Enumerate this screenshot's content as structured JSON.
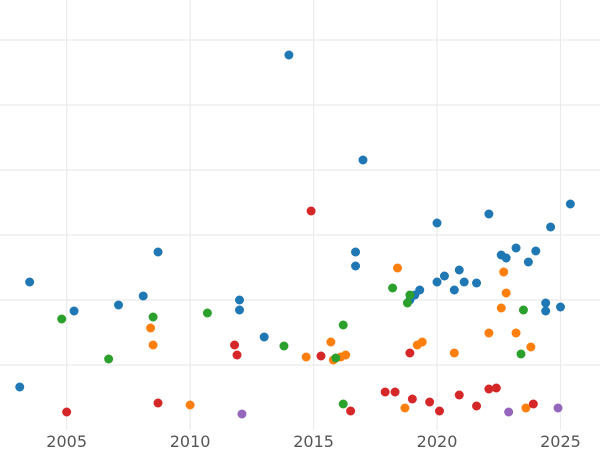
{
  "chart_data": {
    "type": "scatter",
    "title": "",
    "xlabel": "",
    "ylabel": "",
    "xlim": [
      2002.3,
      2026.6
    ],
    "ylim": [
      0,
      430
    ],
    "x_ticks": [
      2005,
      2010,
      2015,
      2020,
      2025
    ],
    "x_tick_labels": [
      "2005",
      "2010",
      "2015",
      "2020",
      "2025"
    ],
    "y_gridlines": [
      65,
      130,
      195,
      260,
      325,
      390
    ],
    "grid": true,
    "legend": "none",
    "series": [
      {
        "color": "#1f77b4",
        "points": [
          [
            2003.1,
            43
          ],
          [
            2003.5,
            148
          ],
          [
            2005.3,
            119
          ],
          [
            2007.1,
            125
          ],
          [
            2008.1,
            134
          ],
          [
            2008.7,
            178
          ],
          [
            2012.0,
            120
          ],
          [
            2012.0,
            130
          ],
          [
            2013.0,
            93
          ],
          [
            2014.0,
            375
          ],
          [
            2016.7,
            164
          ],
          [
            2016.7,
            178
          ],
          [
            2017.0,
            270
          ],
          [
            2018.9,
            130
          ],
          [
            2019.1,
            135
          ],
          [
            2019.3,
            140
          ],
          [
            2020.0,
            148
          ],
          [
            2020.0,
            207
          ],
          [
            2020.3,
            154
          ],
          [
            2020.7,
            140
          ],
          [
            2020.9,
            160
          ],
          [
            2021.1,
            148
          ],
          [
            2021.6,
            147
          ],
          [
            2022.1,
            216
          ],
          [
            2022.6,
            175
          ],
          [
            2022.8,
            172
          ],
          [
            2023.2,
            182
          ],
          [
            2023.7,
            168
          ],
          [
            2024.0,
            179
          ],
          [
            2024.4,
            119
          ],
          [
            2024.4,
            127
          ],
          [
            2024.6,
            203
          ],
          [
            2025.0,
            123
          ],
          [
            2025.4,
            226
          ]
        ]
      },
      {
        "color": "#ff7f0e",
        "points": [
          [
            2008.4,
            102
          ],
          [
            2008.5,
            85
          ],
          [
            2010.0,
            25
          ],
          [
            2014.7,
            73
          ],
          [
            2015.7,
            88
          ],
          [
            2015.8,
            70
          ],
          [
            2016.1,
            73
          ],
          [
            2016.3,
            75
          ],
          [
            2018.4,
            162
          ],
          [
            2018.7,
            22
          ],
          [
            2019.2,
            85
          ],
          [
            2019.4,
            88
          ],
          [
            2020.7,
            77
          ],
          [
            2022.1,
            97
          ],
          [
            2022.6,
            122
          ],
          [
            2022.7,
            158
          ],
          [
            2022.8,
            137
          ],
          [
            2023.2,
            97
          ],
          [
            2023.6,
            22
          ],
          [
            2023.8,
            83
          ]
        ]
      },
      {
        "color": "#2ca02c",
        "points": [
          [
            2004.8,
            111
          ],
          [
            2006.7,
            71
          ],
          [
            2008.5,
            113
          ],
          [
            2010.7,
            117
          ],
          [
            2013.8,
            84
          ],
          [
            2015.9,
            72
          ],
          [
            2016.2,
            105
          ],
          [
            2016.2,
            26
          ],
          [
            2018.2,
            142
          ],
          [
            2018.8,
            127
          ],
          [
            2018.9,
            135
          ],
          [
            2023.4,
            76
          ],
          [
            2023.5,
            120
          ]
        ]
      },
      {
        "color": "#d62728",
        "points": [
          [
            2005.0,
            18
          ],
          [
            2008.7,
            27
          ],
          [
            2011.8,
            85
          ],
          [
            2011.9,
            75
          ],
          [
            2014.9,
            219
          ],
          [
            2015.3,
            74
          ],
          [
            2016.5,
            19
          ],
          [
            2017.9,
            38
          ],
          [
            2018.3,
            38
          ],
          [
            2018.9,
            77
          ],
          [
            2019.0,
            31
          ],
          [
            2019.7,
            28
          ],
          [
            2020.1,
            19
          ],
          [
            2020.9,
            35
          ],
          [
            2021.6,
            24
          ],
          [
            2022.1,
            41
          ],
          [
            2022.4,
            42
          ],
          [
            2023.9,
            26
          ]
        ]
      },
      {
        "color": "#9467bd",
        "points": [
          [
            2012.1,
            16
          ],
          [
            2022.9,
            18
          ],
          [
            2024.9,
            22
          ]
        ]
      }
    ]
  }
}
